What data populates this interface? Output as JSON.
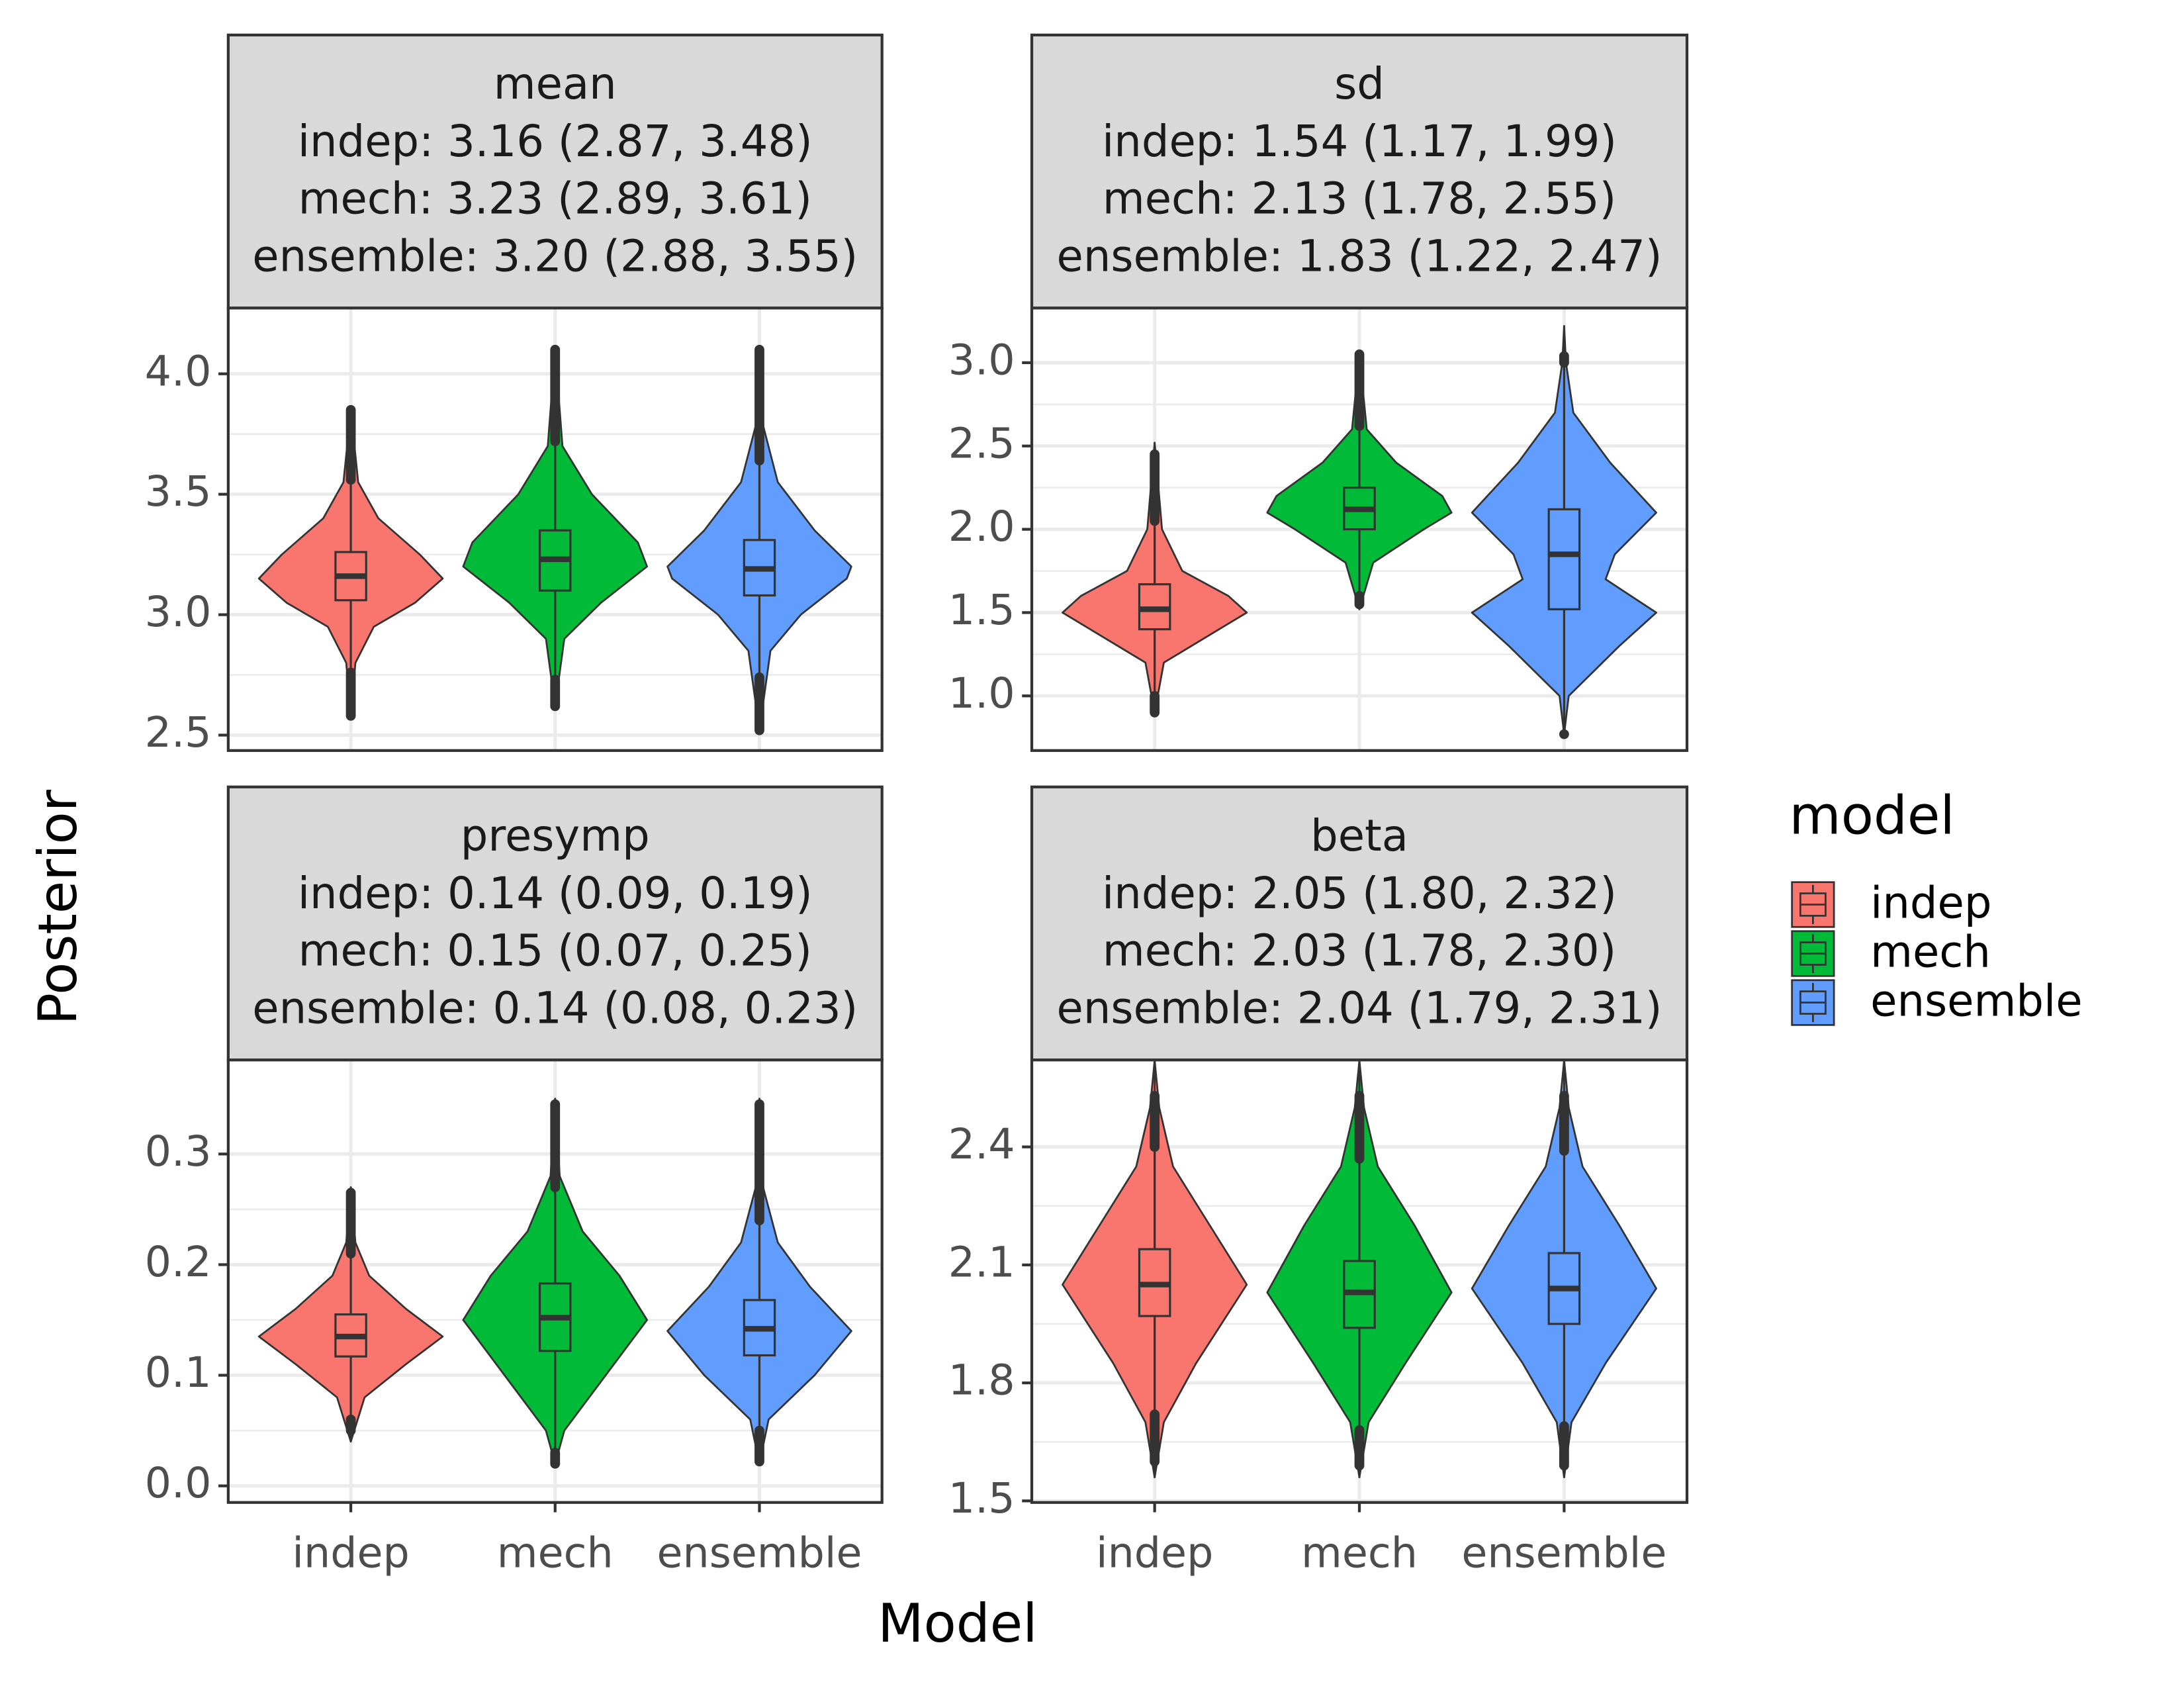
{
  "chart_data": [
    {
      "type": "violin",
      "title": "mean",
      "subtitle": [
        "indep: 3.16 (2.87, 3.48)",
        "mech: 3.23 (2.89, 3.61)",
        "ensemble: 3.20 (2.88, 3.55)"
      ],
      "ylim": [
        2.436,
        4.273
      ],
      "yticks": [
        {
          "value": 2.5,
          "label": "2.5"
        },
        {
          "value": 3,
          "label": "3.0"
        },
        {
          "value": 3.5,
          "label": "3.5"
        },
        {
          "value": 4,
          "label": "4.0"
        }
      ],
      "violins": [
        {
          "q1": 3.06,
          "median": 3.16,
          "q3": 3.26,
          "whisker_low": 2.76,
          "whisker_high": 3.56,
          "min": 2.58,
          "max": 3.85,
          "density": {
            "y": [
              2.58,
              2.8,
              2.95,
              3.05,
              3.15,
              3.25,
              3.4,
              3.55,
              3.85
            ],
            "width": [
              0,
              0.05,
              0.25,
              0.7,
              1,
              0.75,
              0.3,
              0.08,
              0
            ]
          }
        },
        {
          "q1": 3.1,
          "median": 3.23,
          "q3": 3.35,
          "whisker_low": 2.73,
          "whisker_high": 3.72,
          "min": 2.62,
          "max": 4.1,
          "density": {
            "y": [
              2.62,
              2.9,
              3.05,
              3.2,
              3.3,
              3.5,
              3.7,
              4.1
            ],
            "width": [
              0,
              0.1,
              0.5,
              1,
              0.9,
              0.4,
              0.08,
              0
            ]
          }
        },
        {
          "q1": 3.08,
          "median": 3.19,
          "q3": 3.31,
          "whisker_low": 2.74,
          "whisker_high": 3.64,
          "min": 2.52,
          "max": 4.1,
          "density": {
            "y": [
              2.52,
              2.85,
              3.0,
              3.15,
              3.2,
              3.35,
              3.55,
              3.8,
              4.1
            ],
            "width": [
              0,
              0.12,
              0.45,
              0.95,
              1,
              0.6,
              0.2,
              0.03,
              0
            ]
          }
        }
      ]
    },
    {
      "type": "violin",
      "title": "sd",
      "subtitle": [
        "indep: 1.54 (1.17, 1.99)",
        "mech: 2.13 (1.78, 2.55)",
        "ensemble: 1.83 (1.22, 2.47)"
      ],
      "ylim": [
        0.672,
        3.328
      ],
      "yticks": [
        {
          "value": 1,
          "label": "1.0"
        },
        1.5,
        {
          "value": 2,
          "label": "2.0"
        },
        2.5,
        {
          "value": 3,
          "label": "3.0"
        }
      ],
      "violins": [
        {
          "q1": 1.4,
          "median": 1.52,
          "q3": 1.67,
          "whisker_low": 1.0,
          "whisker_high": 2.05,
          "min": 0.9,
          "max": 2.45,
          "density": {
            "y": [
              0.9,
              1.2,
              1.4,
              1.5,
              1.6,
              1.75,
              2.0,
              2.52
            ],
            "width": [
              0,
              0.1,
              0.7,
              1,
              0.8,
              0.3,
              0.08,
              0
            ]
          }
        },
        {
          "q1": 2.0,
          "median": 2.12,
          "q3": 2.25,
          "whisker_low": 1.6,
          "whisker_high": 2.62,
          "min": 1.55,
          "max": 3.05,
          "density": {
            "y": [
              1.52,
              1.8,
              2.0,
              2.1,
              2.2,
              2.4,
              2.6,
              3.05
            ],
            "width": [
              0,
              0.15,
              0.7,
              1,
              0.9,
              0.4,
              0.08,
              0
            ]
          }
        },
        {
          "q1": 1.52,
          "median": 1.85,
          "q3": 2.12,
          "whisker_low": 0.77,
          "whisker_high": 3.0,
          "min": 0.77,
          "max": 3.04,
          "density": {
            "y": [
              0.77,
              1.0,
              1.3,
              1.5,
              1.7,
              1.85,
              2.1,
              2.4,
              2.7,
              3.0,
              3.22
            ],
            "width": [
              0,
              0.05,
              0.6,
              1,
              0.45,
              0.55,
              1,
              0.5,
              0.1,
              0.02,
              0
            ]
          }
        }
      ]
    },
    {
      "type": "violin",
      "title": "presymp",
      "subtitle": [
        "indep: 0.14 (0.09, 0.19)",
        "mech: 0.15 (0.07, 0.25)",
        "ensemble: 0.14 (0.08, 0.23)"
      ],
      "ylim": [
        -0.015,
        0.385
      ],
      "yticks": [
        {
          "value": 0,
          "label": "0.0"
        },
        0.1,
        0.2,
        0.3
      ],
      "violins": [
        {
          "q1": 0.117,
          "median": 0.135,
          "q3": 0.155,
          "whisker_low": 0.06,
          "whisker_high": 0.21,
          "min": 0.05,
          "max": 0.265,
          "density": {
            "y": [
              0.04,
              0.08,
              0.11,
              0.135,
              0.16,
              0.19,
              0.22,
              0.27
            ],
            "width": [
              0,
              0.15,
              0.6,
              1,
              0.6,
              0.2,
              0.05,
              0
            ]
          }
        },
        {
          "q1": 0.122,
          "median": 0.152,
          "q3": 0.183,
          "whisker_low": 0.03,
          "whisker_high": 0.27,
          "min": 0.02,
          "max": 0.345,
          "density": {
            "y": [
              0.02,
              0.05,
              0.1,
              0.15,
              0.19,
              0.23,
              0.28,
              0.35
            ],
            "width": [
              0,
              0.1,
              0.55,
              1,
              0.7,
              0.3,
              0.05,
              0
            ]
          }
        },
        {
          "q1": 0.118,
          "median": 0.142,
          "q3": 0.168,
          "whisker_low": 0.05,
          "whisker_high": 0.24,
          "min": 0.022,
          "max": 0.345,
          "density": {
            "y": [
              0.02,
              0.06,
              0.1,
              0.14,
              0.18,
              0.22,
              0.27,
              0.35
            ],
            "width": [
              0,
              0.1,
              0.6,
              1,
              0.55,
              0.2,
              0.04,
              0
            ]
          }
        }
      ]
    },
    {
      "type": "violin",
      "title": "beta",
      "subtitle": [
        "indep: 2.05 (1.80, 2.32)",
        "mech: 2.03 (1.78, 2.30)",
        "ensemble: 2.04 (1.79, 2.31)"
      ],
      "ylim": [
        1.496,
        2.621
      ],
      "yticks": [
        1.5,
        1.8,
        2.1,
        2.4
      ],
      "violins": [
        {
          "q1": 1.97,
          "median": 2.05,
          "q3": 2.14,
          "whisker_low": 1.72,
          "whisker_high": 2.4,
          "min": 1.6,
          "max": 2.53,
          "density": {
            "y": [
              1.56,
              1.7,
              1.85,
              2.05,
              2.2,
              2.35,
              2.5,
              2.62
            ],
            "width": [
              0,
              0.1,
              0.45,
              1,
              0.6,
              0.2,
              0.05,
              0
            ]
          }
        },
        {
          "q1": 1.94,
          "median": 2.03,
          "q3": 2.11,
          "whisker_low": 1.68,
          "whisker_high": 2.37,
          "min": 1.59,
          "max": 2.53,
          "density": {
            "y": [
              1.56,
              1.7,
              1.85,
              2.03,
              2.2,
              2.35,
              2.5,
              2.62
            ],
            "width": [
              0,
              0.1,
              0.5,
              1,
              0.6,
              0.2,
              0.05,
              0
            ]
          }
        },
        {
          "q1": 1.95,
          "median": 2.04,
          "q3": 2.13,
          "whisker_low": 1.69,
          "whisker_high": 2.39,
          "min": 1.59,
          "max": 2.53,
          "density": {
            "y": [
              1.56,
              1.7,
              1.85,
              2.04,
              2.2,
              2.35,
              2.5,
              2.62
            ],
            "width": [
              0,
              0.08,
              0.45,
              1,
              0.6,
              0.2,
              0.05,
              0
            ]
          }
        }
      ]
    }
  ],
  "categories": [
    "indep",
    "mech",
    "ensemble"
  ],
  "colors": [
    "#F8766D",
    "#00BA38",
    "#619CFF"
  ],
  "x_label": "Model",
  "y_label": "Posterior",
  "legend": {
    "title": "model",
    "position": "right"
  }
}
